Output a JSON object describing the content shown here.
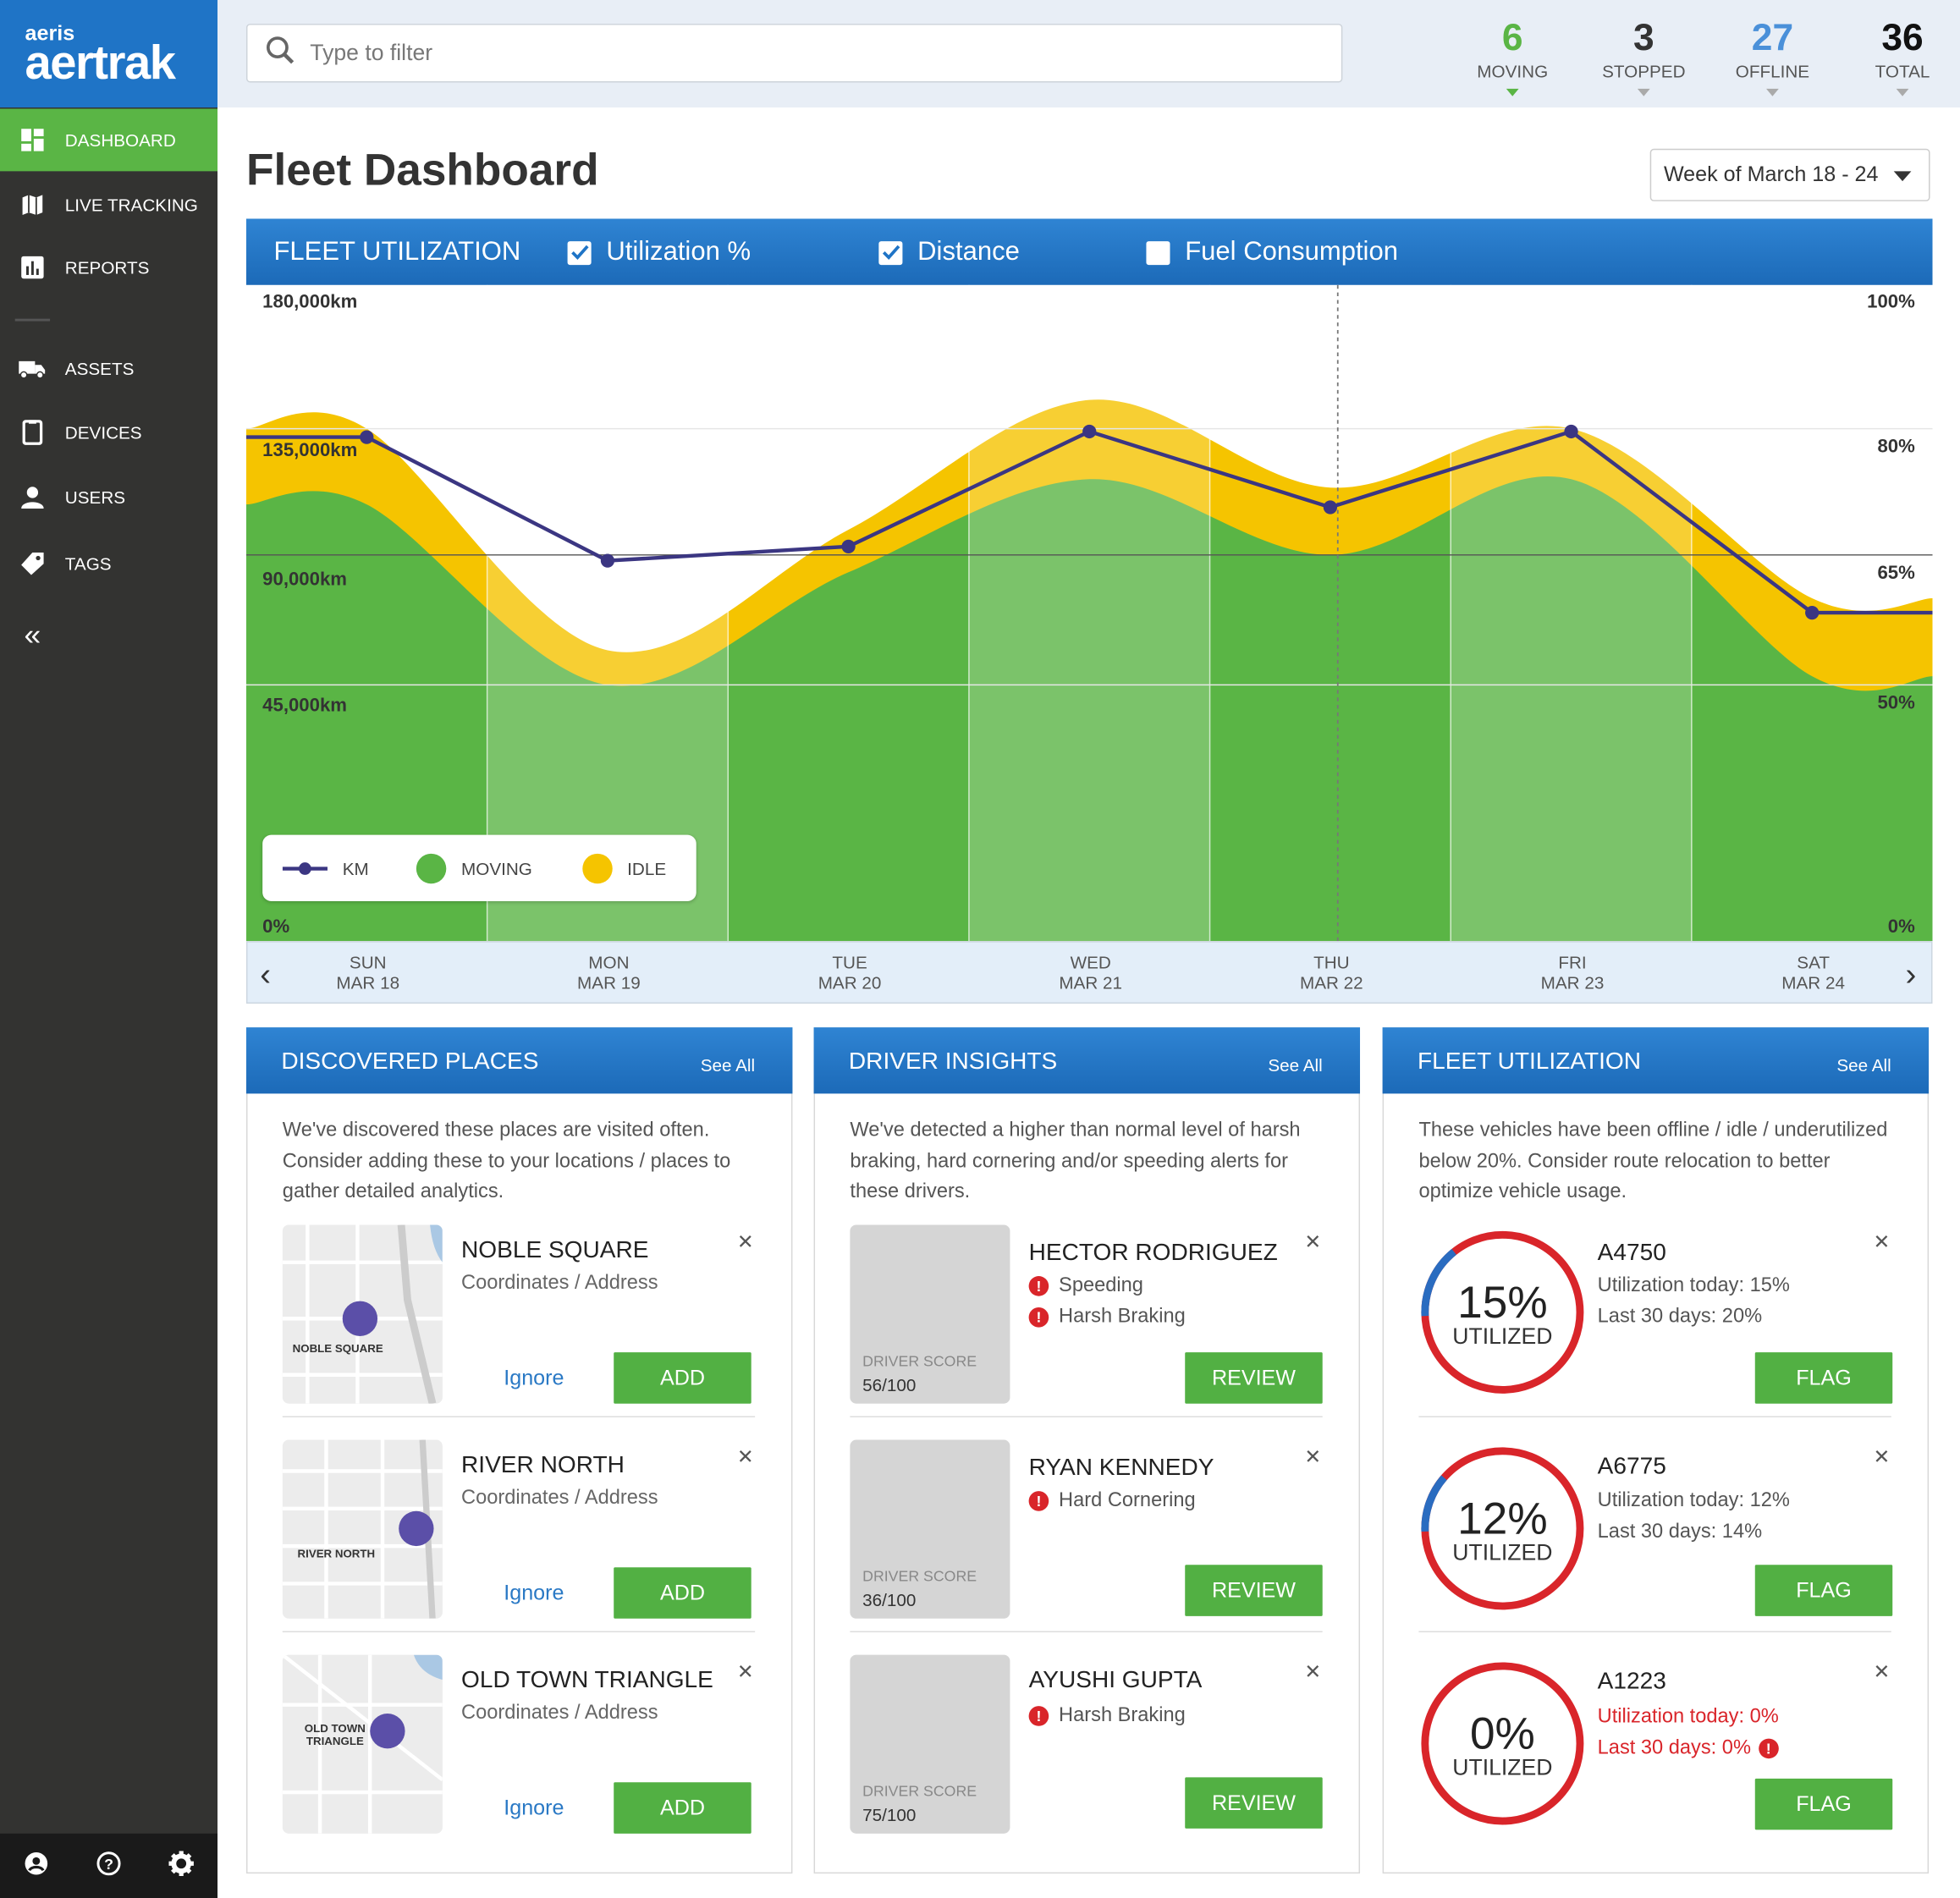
{
  "brand": {
    "small": "aeris",
    "large": "aertrak"
  },
  "sidebar": {
    "items": [
      {
        "label": "DASHBOARD",
        "icon": "dashboard-icon",
        "active": true
      },
      {
        "label": "LIVE TRACKING",
        "icon": "map-icon"
      },
      {
        "label": "REPORTS",
        "icon": "bar-chart-icon"
      },
      {
        "label": "ASSETS",
        "icon": "truck-icon"
      },
      {
        "label": "DEVICES",
        "icon": "device-icon"
      },
      {
        "label": "USERS",
        "icon": "user-icon"
      },
      {
        "label": "TAGS",
        "icon": "tag-icon"
      }
    ],
    "collapse_icon": "«"
  },
  "search": {
    "placeholder": "Type to filter"
  },
  "stats": [
    {
      "value": "6",
      "label": "MOVING",
      "color": "#5ab545"
    },
    {
      "value": "3",
      "label": "STOPPED",
      "color": "#333333"
    },
    {
      "value": "27",
      "label": "OFFLINE",
      "color": "#4a90d9"
    },
    {
      "value": "36",
      "label": "TOTAL",
      "color": "#111111"
    }
  ],
  "page_title": "Fleet Dashboard",
  "week_selector": "Week of March 18 - 24",
  "chart_panel": {
    "title": "FLEET UTILIZATION",
    "checkboxes": [
      {
        "label": "Utilization %",
        "checked": true
      },
      {
        "label": "Distance",
        "checked": true
      },
      {
        "label": "Fuel Consumption",
        "checked": false
      }
    ],
    "legend": [
      "KM",
      "MOVING",
      "IDLE"
    ]
  },
  "chart_data": {
    "type": "area",
    "categories": [
      "SUN MAR 18",
      "MON MAR 19",
      "TUE MAR 20",
      "WED MAR 21",
      "THU MAR 22",
      "FRI MAR 23",
      "SAT MAR 24"
    ],
    "x_day": [
      "SUN",
      "MON",
      "TUE",
      "WED",
      "THU",
      "FRI",
      "SAT"
    ],
    "x_date": [
      "MAR 18",
      "MAR 19",
      "MAR 20",
      "MAR 21",
      "MAR 22",
      "MAR 23",
      "MAR 24"
    ],
    "left_ticks": [
      "180,000km",
      "135,000km",
      "90,000km",
      "45,000km"
    ],
    "right_ticks": [
      "100%",
      "80%",
      "65%",
      "50%",
      "0%"
    ],
    "left_bottom": "0%",
    "series": [
      {
        "name": "KM",
        "axis": "left",
        "values": [
          132000,
          88000,
          93000,
          134000,
          107000,
          134000,
          70000
        ]
      },
      {
        "name": "MOVING",
        "axis": "right",
        "values": [
          71,
          50,
          63,
          74,
          65,
          74,
          51
        ]
      },
      {
        "name": "IDLE",
        "axis": "right",
        "values": [
          80,
          54,
          68,
          84,
          73,
          80,
          60
        ]
      }
    ],
    "grid": true,
    "legend_position": "bottom-left",
    "colors": {
      "km": "#3b3682",
      "moving": "#5ab545",
      "moving_alt": "#7dc36f",
      "idle": "#f5c400"
    }
  },
  "cards": {
    "places": {
      "title": "DISCOVERED PLACES",
      "see_all": "See All",
      "description": "We've discovered these places are visited often. Consider adding these to your locations / places to gather detailed analytics.",
      "items": [
        {
          "name": "NOBLE SQUARE",
          "sub": "Coordinates / Address",
          "map_label": "NOBLE SQUARE",
          "ignore": "Ignore",
          "add": "ADD"
        },
        {
          "name": "RIVER NORTH",
          "sub": "Coordinates / Address",
          "map_label": "RIVER NORTH",
          "ignore": "Ignore",
          "add": "ADD"
        },
        {
          "name": "OLD TOWN TRIANGLE",
          "sub": "Coordinates / Address",
          "map_label": "OLD TOWN TRIANGLE",
          "ignore": "Ignore",
          "add": "ADD"
        }
      ]
    },
    "drivers": {
      "title": "DRIVER INSIGHTS",
      "see_all": "See All",
      "description": "We've detected a higher than normal level of harsh braking, hard cornering and/or speeding alerts for these drivers.",
      "items": [
        {
          "name": "HECTOR RODRIGUEZ",
          "alerts": [
            "Speeding",
            "Harsh Braking"
          ],
          "score_label": "DRIVER SCORE",
          "score": "56/100",
          "review": "REVIEW"
        },
        {
          "name": "RYAN KENNEDY",
          "alerts": [
            "Hard Cornering"
          ],
          "score_label": "DRIVER SCORE",
          "score": "36/100",
          "review": "REVIEW"
        },
        {
          "name": "AYUSHI GUPTA",
          "alerts": [
            "Harsh Braking"
          ],
          "score_label": "DRIVER SCORE",
          "score": "75/100",
          "review": "REVIEW"
        }
      ]
    },
    "utilization": {
      "title": "FLEET UTILIZATION",
      "see_all": "See All",
      "description": "These vehicles have been offline / idle / underutilized below 20%. Consider route relocation to better optimize vehicle usage.",
      "items": [
        {
          "id": "A4750",
          "pct": "15%",
          "fraction": 0.15,
          "utilized": "UTILIZED",
          "today": "Utilization today: 15%",
          "last30": "Last 30 days: 20%",
          "warn": false,
          "flag": "FLAG"
        },
        {
          "id": "A6775",
          "pct": "12%",
          "fraction": 0.12,
          "utilized": "UTILIZED",
          "today": "Utilization today: 12%",
          "last30": "Last 30 days: 14%",
          "warn": false,
          "flag": "FLAG"
        },
        {
          "id": "A1223",
          "pct": "0%",
          "fraction": 0,
          "utilized": "UTILIZED",
          "today": "Utilization today: 0%",
          "last30": "Last 30 days: 0%",
          "warn": true,
          "flag": "FLAG"
        }
      ]
    }
  },
  "footer_icons": [
    "account-icon",
    "help-icon",
    "settings-icon"
  ]
}
